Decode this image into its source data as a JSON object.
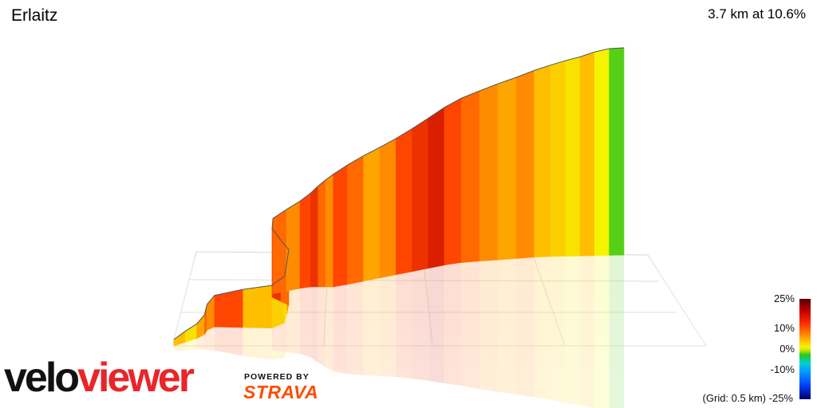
{
  "title": "Erlaitz",
  "summary": "3.7 km at 10.6%",
  "chart_data": {
    "type": "area",
    "x": [
      0,
      0.1,
      0.2,
      0.3,
      0.4,
      0.5,
      0.6,
      0.7,
      0.8,
      0.9,
      1.0,
      1.1,
      1.2,
      1.3,
      1.4,
      1.5,
      1.6,
      1.7,
      1.8,
      1.9,
      2.0,
      2.1,
      2.2,
      2.3,
      2.4,
      2.5,
      2.6,
      2.7,
      2.8,
      2.9,
      3.0,
      3.1,
      3.2,
      3.3,
      3.4,
      3.5,
      3.6,
      3.7
    ],
    "gradient": [
      8,
      9,
      7,
      10,
      12,
      11,
      13,
      9,
      8,
      7,
      10,
      12,
      14,
      13,
      12,
      11,
      13,
      14,
      12,
      11,
      13,
      12,
      10,
      11,
      13,
      14,
      15,
      13,
      12,
      11,
      10,
      11,
      9,
      8,
      7,
      9,
      6,
      1
    ],
    "legend": {
      "ticks": [
        "25%",
        "10%",
        "0%",
        "-10%",
        "-25%"
      ],
      "note": "(Grid: 0.5 km)"
    }
  },
  "branding": {
    "logo_part1": "velo",
    "logo_part2": "viewer",
    "powered_by": "POWERED BY",
    "strava": "STRAVA"
  }
}
